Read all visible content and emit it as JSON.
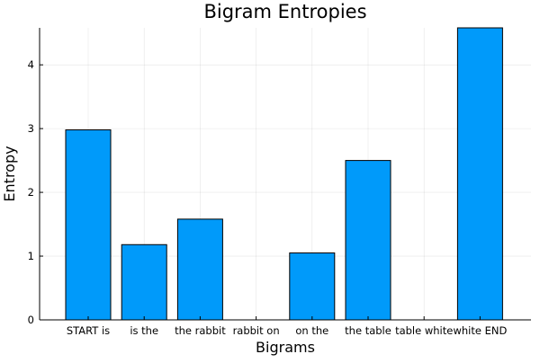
{
  "chart_data": {
    "type": "bar",
    "title": "Bigram Entropies",
    "xlabel": "Bigrams",
    "ylabel": "Entropy",
    "categories": [
      "START is",
      "is the",
      "the rabbit",
      "rabbit on",
      "on the",
      "the table",
      "table white",
      "white END"
    ],
    "values": [
      2.98,
      1.18,
      1.58,
      0,
      1.05,
      2.5,
      0,
      4.58
    ],
    "yticks": [
      "0",
      "1",
      "2",
      "3",
      "4"
    ],
    "ylim": [
      0,
      4.58
    ],
    "grid": true,
    "legend": "none",
    "bar_color": "#009AFA"
  }
}
